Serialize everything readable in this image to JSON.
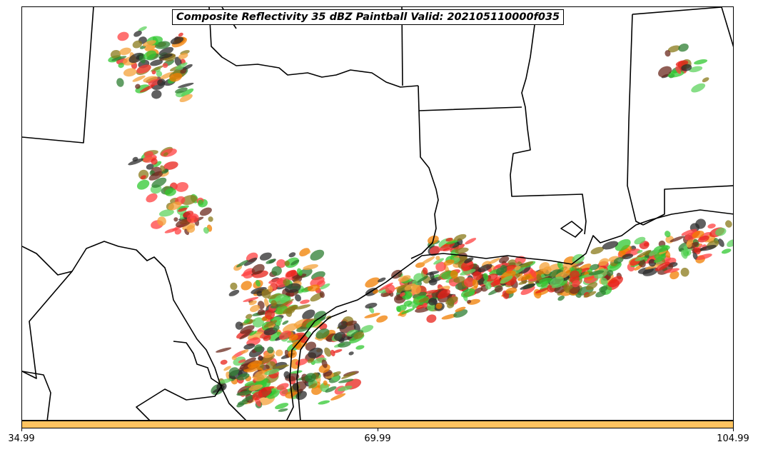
{
  "title": "Composite Reflectivity 35 dBZ Paintball Valid: 202105110000f035",
  "colorbar": {
    "color": "#fec360",
    "ticks": [
      "34.99",
      "69.99",
      "104.99"
    ]
  },
  "palette": [
    "#e8221a",
    "#f07d00",
    "#32c832",
    "#2e7d32",
    "#6b2a1e",
    "#8a7a1a",
    "#2b2b2b",
    "#f4a23a",
    "#ff4040",
    "#5fd35f"
  ],
  "legend_colors_note_none": ""
}
